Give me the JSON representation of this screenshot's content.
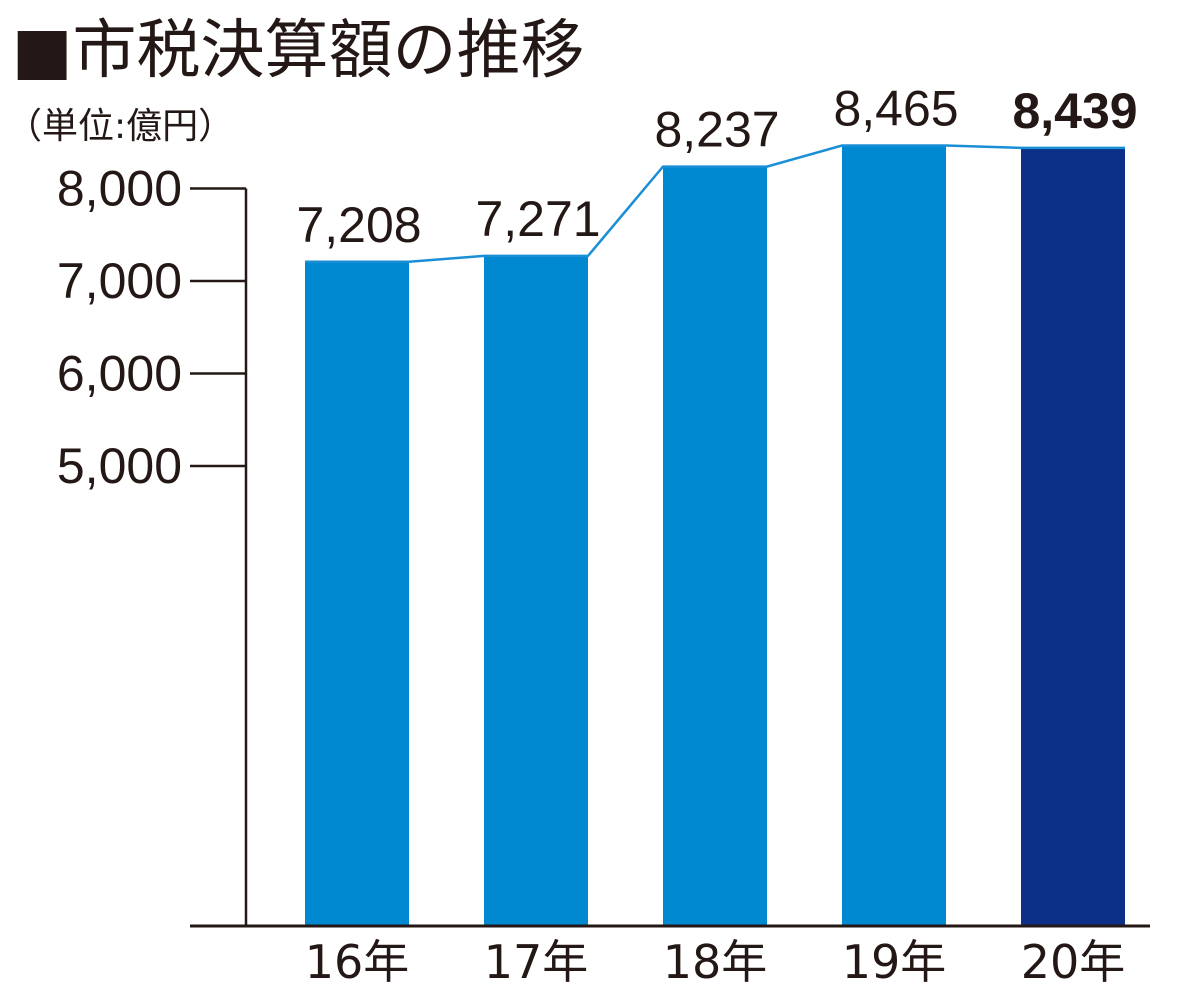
{
  "title": "■市税決算額の推移",
  "unit_label": "（単位:億円）",
  "colors": {
    "bar": "#0088d1",
    "bar_highlight": "#0c3087",
    "line": "#1a8fd6",
    "axis": "#231815",
    "text": "#231815"
  },
  "chart_data": {
    "type": "bar",
    "title": "■市税決算額の推移",
    "ylabel": "（単位:億円）",
    "xlabel": "",
    "categories": [
      "16年",
      "17年",
      "18年",
      "19年",
      "20年"
    ],
    "values": [
      7208,
      7271,
      8237,
      8465,
      8439
    ],
    "value_labels": [
      "7,208",
      "7,271",
      "8,237",
      "8,465",
      "8,439"
    ],
    "highlight_index": 4,
    "y_ticks": [
      5000,
      6000,
      7000,
      8000
    ],
    "y_tick_labels": [
      "5,000",
      "6,000",
      "7,000",
      "8,000"
    ],
    "axis_break": "baseline below 5,000 is compressed (broken axis)",
    "connecting_line": true,
    "grid": false,
    "legend": "none"
  }
}
